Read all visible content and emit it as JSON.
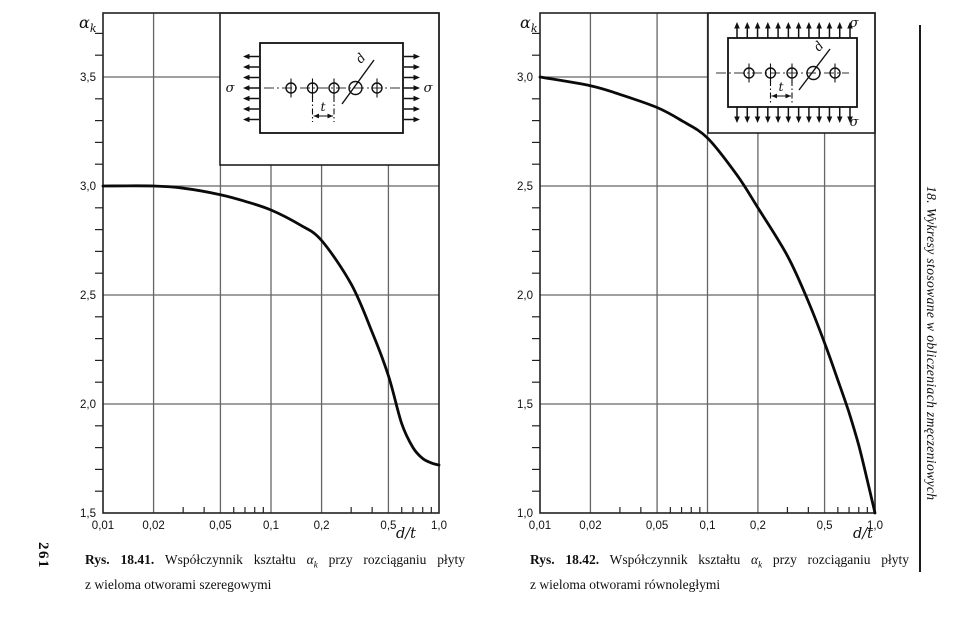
{
  "page": {
    "number": "261",
    "running_head": "18. Wykresy stosowane w obliczeniach zmęczeniowych",
    "paper_color": "#ffffff",
    "ink_color": "#111111",
    "grid_color": "#666666"
  },
  "chart_data": [
    {
      "type": "line",
      "figure": "Rys. 18.41",
      "x_scale": "log",
      "xlabel": "d/t",
      "ylabel": "αk",
      "ylabel_main": "α",
      "ylabel_sub": "k",
      "xlim": [
        0.01,
        1.0
      ],
      "ylim": [
        1.5,
        3.8
      ],
      "grid": true,
      "x_ticks": [
        {
          "v": 0.01,
          "label": "0,01"
        },
        {
          "v": 0.02,
          "label": "0,02"
        },
        {
          "v": 0.05,
          "label": "0,05"
        },
        {
          "v": 0.1,
          "label": "0,1"
        },
        {
          "v": 0.2,
          "label": "0,2"
        },
        {
          "v": 0.5,
          "label": "0,5"
        },
        {
          "v": 1.0,
          "label": "1,0"
        }
      ],
      "x_minor_ticks": [
        0.03,
        0.04,
        0.06,
        0.07,
        0.08,
        0.09,
        0.3,
        0.4,
        0.6,
        0.7,
        0.8,
        0.9
      ],
      "y_ticks": [
        {
          "v": 1.5,
          "label": "1,5"
        },
        {
          "v": 2.0,
          "label": "2,0"
        },
        {
          "v": 2.5,
          "label": "2,5"
        },
        {
          "v": 3.0,
          "label": "3,0"
        },
        {
          "v": 3.5,
          "label": "3,5"
        }
      ],
      "y_minor_step": 0.1,
      "series": [
        {
          "name": "αk",
          "x": [
            0.01,
            0.02,
            0.03,
            0.05,
            0.07,
            0.1,
            0.15,
            0.2,
            0.3,
            0.4,
            0.5,
            0.6,
            0.7,
            0.8,
            0.9,
            1.0
          ],
          "y": [
            3.0,
            3.0,
            2.99,
            2.96,
            2.93,
            2.89,
            2.82,
            2.75,
            2.55,
            2.33,
            2.13,
            1.91,
            1.8,
            1.75,
            1.73,
            1.72
          ]
        }
      ],
      "inset": {
        "description": "płyta z szeregiem otworów, rozciąganie poziome wzdłuż szeregu otworów",
        "load_direction": "horizontal",
        "holes": 5,
        "sigma_label": "σ",
        "d_label": "d",
        "t_label": "t"
      },
      "caption": {
        "prefix": "Rys. 18.41.",
        "text_before_symbol": "Współczynnik kształtu",
        "symbol_main": "α",
        "symbol_sub": "k",
        "text_after_symbol": "przy rozciąganiu płyty",
        "line2": "z wieloma otworami szeregowymi"
      }
    },
    {
      "type": "line",
      "figure": "Rys. 18.42",
      "x_scale": "log",
      "xlabel": "d/t",
      "ylabel": "αk",
      "ylabel_main": "α",
      "ylabel_sub": "k",
      "xlim": [
        0.01,
        1.0
      ],
      "ylim": [
        1.0,
        3.3
      ],
      "grid": true,
      "x_ticks": [
        {
          "v": 0.01,
          "label": "0,01"
        },
        {
          "v": 0.02,
          "label": "0,02"
        },
        {
          "v": 0.05,
          "label": "0,05"
        },
        {
          "v": 0.1,
          "label": "0,1"
        },
        {
          "v": 0.2,
          "label": "0,2"
        },
        {
          "v": 0.5,
          "label": "0,5"
        },
        {
          "v": 1.0,
          "label": "1,0"
        }
      ],
      "x_minor_ticks": [
        0.03,
        0.04,
        0.06,
        0.07,
        0.08,
        0.09,
        0.3,
        0.4,
        0.6,
        0.7,
        0.8,
        0.9
      ],
      "y_ticks": [
        {
          "v": 1.0,
          "label": "1,0"
        },
        {
          "v": 1.5,
          "label": "1,5"
        },
        {
          "v": 2.0,
          "label": "2,0"
        },
        {
          "v": 2.5,
          "label": "2,5"
        },
        {
          "v": 3.0,
          "label": "3,0"
        }
      ],
      "y_minor_step": 0.1,
      "series": [
        {
          "name": "αk",
          "x": [
            0.01,
            0.02,
            0.03,
            0.05,
            0.07,
            0.1,
            0.15,
            0.2,
            0.3,
            0.4,
            0.5,
            0.6,
            0.7,
            0.8,
            0.9,
            1.0
          ],
          "y": [
            3.0,
            2.96,
            2.92,
            2.86,
            2.8,
            2.72,
            2.55,
            2.4,
            2.18,
            1.97,
            1.78,
            1.61,
            1.46,
            1.31,
            1.15,
            1.0
          ]
        }
      ],
      "inset": {
        "description": "płyta z szeregiem otworów, rozciąganie pionowe prostopadłe do szeregu otworów",
        "load_direction": "vertical",
        "holes": 5,
        "sigma_label": "σ",
        "d_label": "d",
        "t_label": "t"
      },
      "caption": {
        "prefix": "Rys. 18.42.",
        "text_before_symbol": "Współczynnik kształtu",
        "symbol_main": "α",
        "symbol_sub": "k",
        "text_after_symbol": "przy rozciąganiu płyty",
        "line2": "z wieloma otworami równoległymi"
      }
    }
  ]
}
